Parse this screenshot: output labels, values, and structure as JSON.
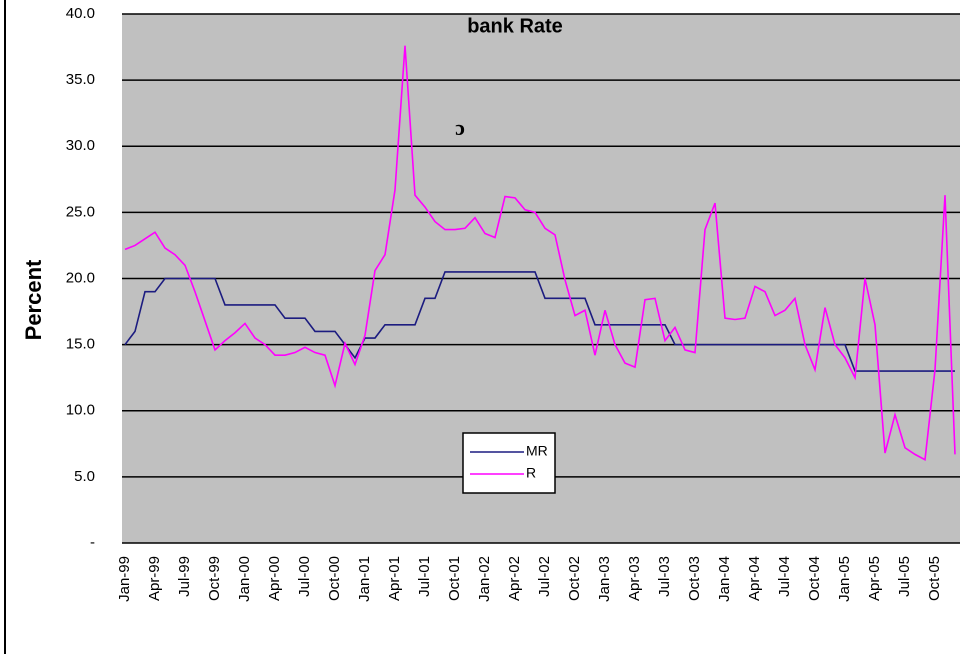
{
  "chart_data": {
    "type": "line",
    "title": "bank Rate",
    "y_label": "Percent",
    "annotation": "ɔ",
    "categories": [
      "Jan-99",
      null,
      null,
      "Apr-99",
      null,
      null,
      "Jul-99",
      null,
      null,
      "Oct-99",
      null,
      null,
      "Jan-00",
      null,
      null,
      "Apr-00",
      null,
      null,
      "Jul-00",
      null,
      null,
      "Oct-00",
      null,
      null,
      "Jan-01",
      null,
      null,
      "Apr-01",
      null,
      null,
      "Jul-01",
      null,
      null,
      "Oct-01",
      null,
      null,
      "Jan-02",
      null,
      null,
      "Apr-02",
      null,
      null,
      "Jul-02",
      null,
      null,
      "Oct-02",
      null,
      null,
      "Jan-03",
      null,
      null,
      "Apr-03",
      null,
      null,
      "Jul-03",
      null,
      null,
      "Oct-03",
      null,
      null,
      "Jan-04",
      null,
      null,
      "Apr-04",
      null,
      null,
      "Jul-04",
      null,
      null,
      "Oct-04",
      null,
      null,
      "Jan-05",
      null,
      null,
      "Apr-05",
      null,
      null,
      "Jul-05",
      null,
      null,
      "Oct-05",
      null,
      null
    ],
    "series": [
      {
        "name": "MR",
        "color": "#1c1c80",
        "values": [
          15,
          16,
          19,
          19,
          20,
          20,
          20,
          20,
          20,
          20,
          18,
          18,
          18,
          18,
          18,
          18,
          17,
          17,
          17,
          16,
          16,
          16,
          15,
          14,
          15.5,
          15.5,
          16.5,
          16.5,
          16.5,
          16.5,
          18.5,
          18.5,
          20.5,
          20.5,
          20.5,
          20.5,
          20.5,
          20.5,
          20.5,
          20.5,
          20.5,
          20.5,
          18.5,
          18.5,
          18.5,
          18.5,
          18.5,
          16.5,
          16.5,
          16.5,
          16.5,
          16.5,
          16.5,
          16.5,
          16.5,
          15,
          15,
          15,
          15,
          15,
          15,
          15,
          15,
          15,
          15,
          15,
          15,
          15,
          15,
          15,
          15,
          15,
          15,
          13,
          13,
          13,
          13,
          13,
          13,
          13,
          13,
          13,
          13,
          13
        ]
      },
      {
        "name": "R",
        "color": "#ff00ff",
        "values": [
          22.2,
          22.5,
          23,
          23.5,
          22.3,
          21.8,
          21,
          19,
          16.8,
          14.6,
          15.3,
          15.9,
          16.6,
          15.5,
          15,
          14.2,
          14.2,
          14.4,
          14.8,
          14.4,
          14.2,
          11.9,
          15.1,
          13.5,
          15.7,
          20.6,
          21.8,
          26.7,
          37.6,
          26.3,
          25.4,
          24.3,
          23.7,
          23.7,
          23.8,
          24.6,
          23.4,
          23.1,
          26.2,
          26.1,
          25.2,
          25,
          23.8,
          23.3,
          19.9,
          17.2,
          17.6,
          14.2,
          17.6,
          15,
          13.6,
          13.3,
          18.4,
          18.5,
          15.3,
          16.3,
          14.6,
          14.4,
          23.7,
          25.7,
          17,
          16.9,
          17,
          19.4,
          19,
          17.2,
          17.6,
          18.5,
          15,
          13.1,
          17.8,
          15,
          14,
          12.5,
          20,
          16.5,
          6.8,
          9.7,
          7.2,
          6.7,
          6.3,
          13.1,
          26.3,
          6.7
        ]
      }
    ],
    "ylim": [
      0,
      40
    ],
    "yticks": [
      {
        "value": 0,
        "label": "-"
      },
      {
        "value": 5,
        "label": "5.0"
      },
      {
        "value": 10,
        "label": "10.0"
      },
      {
        "value": 15,
        "label": "15.0"
      },
      {
        "value": 20,
        "label": "20.0"
      },
      {
        "value": 25,
        "label": "25.0"
      },
      {
        "value": 30,
        "label": "30.0"
      },
      {
        "value": 35,
        "label": "35.0"
      },
      {
        "value": 40,
        "label": "40.0"
      }
    ],
    "grid": true,
    "background": "#c0c0c0"
  }
}
